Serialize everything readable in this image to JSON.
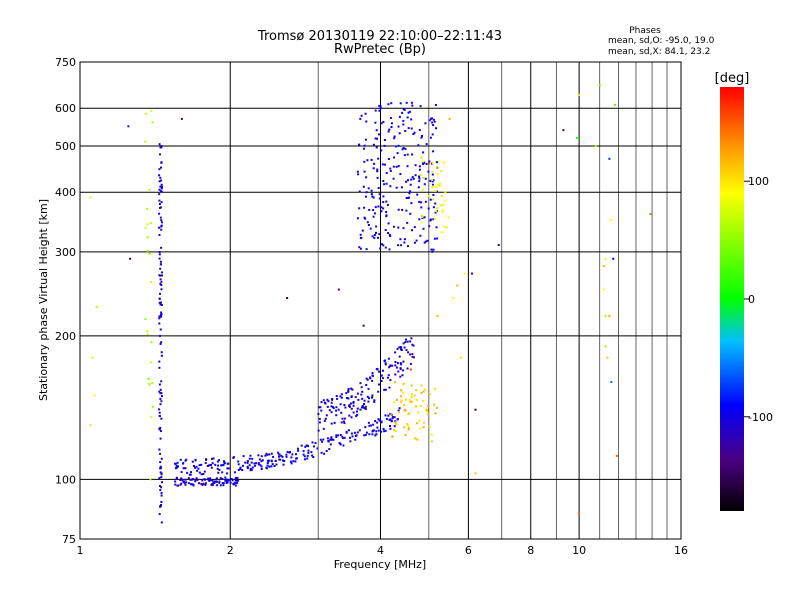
{
  "chart_data": {
    "type": "scatter",
    "title": "Tromsø 20130119 22:10:00–22:11:43",
    "subtitle": "RwPretec (Bp)",
    "xlabel": "Frequency [MHz]",
    "ylabel": "Stationary phase Virtual Height [km]",
    "x_scale": "log",
    "y_scale": "log",
    "xlim": [
      1,
      16
    ],
    "ylim": [
      75,
      750
    ],
    "x_ticks": [
      1,
      2,
      4,
      6,
      8,
      10,
      16
    ],
    "x_minor": [
      3,
      5,
      7,
      9,
      11,
      12,
      13,
      14,
      15
    ],
    "y_ticks": [
      75,
      100,
      200,
      300,
      400,
      500,
      600,
      750
    ],
    "grid": true,
    "phases": {
      "heading": "Phases",
      "o_line": "mean, sd,O:  -95.0, 19.0",
      "x_line": "mean, sd,X:  84.1, 23.2"
    },
    "colorbar": {
      "label": "[deg]",
      "ticks": [
        100,
        0,
        -100
      ],
      "range": [
        -180,
        180
      ]
    },
    "clusters": [
      {
        "trace": "o-e-lower",
        "x_range": [
          1.55,
          2.1
        ],
        "y_range": [
          97,
          101
        ],
        "phase": -105,
        "n": 90
      },
      {
        "trace": "o-e-main",
        "x_range": [
          1.55,
          4.4
        ],
        "y_range": [
          105,
          135
        ],
        "phase": -100,
        "n": 260
      },
      {
        "trace": "o-e-upper",
        "x_range": [
          3.0,
          4.7
        ],
        "y_range": [
          135,
          190
        ],
        "phase": -105,
        "n": 170
      },
      {
        "trace": "x-e",
        "x_range": [
          4.2,
          5.2
        ],
        "y_range": [
          120,
          160
        ],
        "phase": 110,
        "n": 70
      },
      {
        "trace": "o-f",
        "x_range": [
          3.6,
          5.2
        ],
        "y_range": [
          300,
          620
        ],
        "phase": -100,
        "n": 260
      },
      {
        "trace": "x-f",
        "x_range": [
          4.8,
          5.5
        ],
        "y_range": [
          320,
          500
        ],
        "phase": 80,
        "n": 40
      },
      {
        "trace": "vertical-column",
        "x_range": [
          1.44,
          1.46
        ],
        "y_range": [
          80,
          520
        ],
        "phase": -110,
        "n": 120
      },
      {
        "trace": "x-column",
        "x_range": [
          1.35,
          1.4
        ],
        "y_range": [
          95,
          620
        ],
        "phase": 60,
        "n": 25
      }
    ],
    "isolated_points": [
      [
        1.05,
        390,
        80
      ],
      [
        1.06,
        180,
        70
      ],
      [
        1.07,
        150,
        90
      ],
      [
        1.05,
        130,
        100
      ],
      [
        1.08,
        230,
        60
      ],
      [
        1.25,
        550,
        -130
      ],
      [
        1.6,
        570,
        -130
      ],
      [
        1.26,
        290,
        -140
      ],
      [
        2.6,
        240,
        -150
      ],
      [
        3.3,
        250,
        -140
      ],
      [
        3.7,
        210,
        -150
      ],
      [
        6.1,
        270,
        -120
      ],
      [
        6.9,
        310,
        -120
      ],
      [
        6.2,
        140,
        -150
      ],
      [
        6.2,
        103,
        110
      ],
      [
        9.3,
        540,
        -140
      ],
      [
        9.9,
        520,
        0
      ],
      [
        10.0,
        640,
        100
      ],
      [
        10.8,
        500,
        60
      ],
      [
        11.0,
        670,
        40
      ],
      [
        11.2,
        280,
        120
      ],
      [
        11.3,
        290,
        80
      ],
      [
        11.2,
        250,
        90
      ],
      [
        11.3,
        220,
        60
      ],
      [
        11.5,
        220,
        120
      ],
      [
        11.4,
        180,
        110
      ],
      [
        11.3,
        190,
        60
      ],
      [
        11.6,
        160,
        -60
      ],
      [
        11.5,
        470,
        -80
      ],
      [
        11.7,
        290,
        -90
      ],
      [
        11.8,
        610,
        30
      ],
      [
        11.6,
        350,
        90
      ],
      [
        11.9,
        112,
        150
      ],
      [
        13.9,
        360,
        140
      ],
      [
        10.0,
        85,
        150
      ],
      [
        5.8,
        180,
        100
      ],
      [
        5.9,
        270,
        90
      ],
      [
        5.7,
        255,
        120
      ],
      [
        5.6,
        240,
        80
      ],
      [
        5.2,
        220,
        120
      ],
      [
        4.6,
        170,
        160
      ],
      [
        5.5,
        570,
        120
      ],
      [
        5.0,
        460,
        170
      ],
      [
        5.2,
        450,
        150
      ]
    ]
  }
}
